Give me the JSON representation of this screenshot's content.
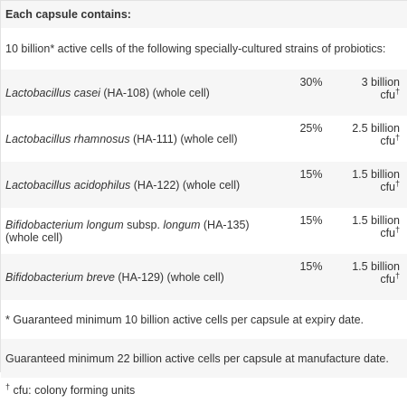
{
  "heading": "Each capsule contains:",
  "intro": "10 billion* active cells of the following specially-cultured strains of probiotics:",
  "strains": [
    {
      "name_italic": "Lactobacillus casei",
      "name_rest": " (HA-108) (whole cell)",
      "name_italic2": "",
      "name_rest2": "",
      "percent": "30%",
      "amount": "3 billion",
      "unit": "cfu",
      "unit_mark": "†"
    },
    {
      "name_italic": "Lactobacillus rhamnosus",
      "name_rest": " (HA-111) (whole cell)",
      "name_italic2": "",
      "name_rest2": "",
      "percent": "25%",
      "amount": "2.5 billion",
      "unit": "cfu",
      "unit_mark": "†"
    },
    {
      "name_italic": "Lactobacillus acidophilus",
      "name_rest": " (HA-122) (whole cell)",
      "name_italic2": "",
      "name_rest2": "",
      "percent": "15%",
      "amount": "1.5 billion",
      "unit": "cfu",
      "unit_mark": "†"
    },
    {
      "name_italic": "Bifidobacterium longum",
      "name_rest": " subsp. ",
      "name_italic2": "longum",
      "name_rest2": " (HA-135) (whole cell)",
      "percent": "15%",
      "amount": "1.5 billion",
      "unit": "cfu",
      "unit_mark": "†"
    },
    {
      "name_italic": "Bifidobacterium breve",
      "name_rest": " (HA-129) (whole cell)",
      "name_italic2": "",
      "name_rest2": "",
      "percent": "15%",
      "amount": "1.5 billion",
      "unit": "cfu",
      "unit_mark": "†"
    }
  ],
  "footnote_guarantee_expiry": "* Guaranteed minimum 10 billion active cells per capsule at expiry date.",
  "footnote_guarantee_manufacture": "Guaranteed minimum 22 billion active cells per capsule at manufacture date.",
  "footnote_cfu_mark": "†",
  "footnote_cfu_text": " cfu: colony forming units"
}
